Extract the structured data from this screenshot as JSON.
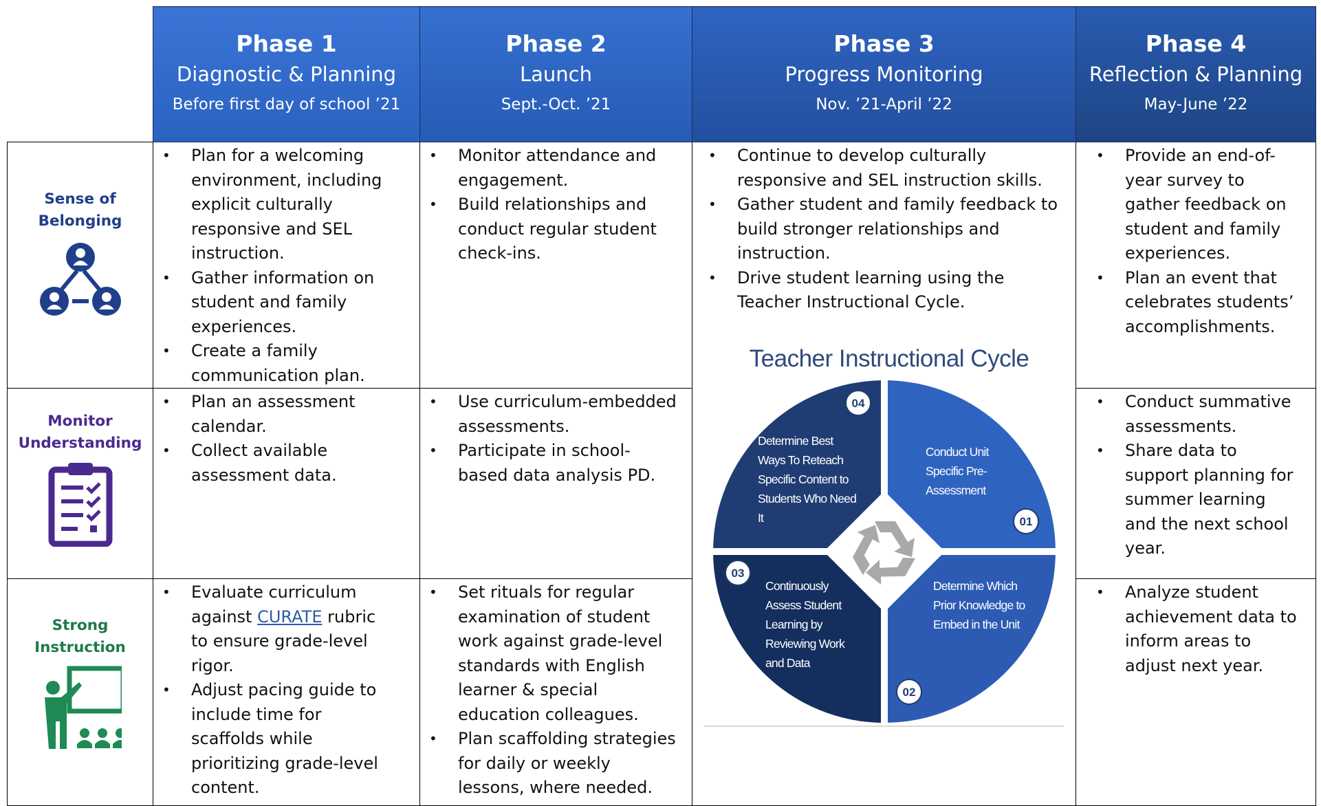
{
  "phases": [
    {
      "title": "Phase 1",
      "subtitle": "Diagnostic & Planning",
      "dates": "Before first day of school ’21"
    },
    {
      "title": "Phase 2",
      "subtitle": "Launch",
      "dates": "Sept.-Oct. ’21"
    },
    {
      "title": "Phase 3",
      "subtitle": "Progress Monitoring",
      "dates": "Nov. ’21-April ’22"
    },
    {
      "title": "Phase 4",
      "subtitle": "Reflection & Planning",
      "dates": "May-June ’22"
    }
  ],
  "rows": [
    {
      "label": "Sense of Belonging",
      "phase1": [
        "Plan for a welcoming environment, including explicit culturally responsive and SEL instruction.",
        "Gather information on student and family experiences.",
        "Create a family communication plan."
      ],
      "phase2": [
        "Monitor attendance and engagement.",
        "Build relationships and conduct regular student check-ins."
      ],
      "phase4": [
        "Provide an end-of-year survey to gather feedback on student and family experiences.",
        "Plan an event that celebrates students’ accomplishments."
      ]
    },
    {
      "label": "Monitor Understanding",
      "phase1": [
        "Plan an assessment calendar.",
        "Collect available assessment data."
      ],
      "phase2": [
        "Use curriculum-embedded assessments.",
        "Participate in school-based data analysis PD."
      ],
      "phase4": [
        "Conduct summative assessments.",
        "Share data to support planning for summer learning and the next school year."
      ]
    },
    {
      "label": "Strong Instruction",
      "phase1": [
        {
          "before": "Evaluate curriculum against",
          "link": "CURATE",
          "after": "rubric to ensure grade-level rigor."
        },
        "Adjust pacing guide to include time for scaffolds while prioritizing grade-level content."
      ],
      "phase2": [
        "Set rituals for regular examination of student work against grade-level standards with English learner & special education colleagues.",
        "Plan scaffolding strategies for daily or weekly lessons, where needed."
      ],
      "phase4": [
        "Analyze student achievement data to inform areas to adjust next year."
      ]
    }
  ],
  "phase3": {
    "bullets": [
      "Continue to develop culturally responsive and SEL instruction skills.",
      "Gather student and family feedback to build stronger relationships and instruction.",
      "Drive student learning using the Teacher Instructional Cycle."
    ],
    "cycle": {
      "title": "Teacher Instructional Cycle",
      "steps": [
        {
          "number": "01",
          "text": "Conduct Unit Specific Pre-Assessment"
        },
        {
          "number": "02",
          "text": "Determine Which Prior Knowledge to Embed in the Unit"
        },
        {
          "number": "03",
          "text": "Continuously Assess Student Learning by Reviewing Work and Data"
        },
        {
          "number": "04",
          "text": "Determine Best Ways To Reteach Specific Content to Students Who Need It"
        }
      ]
    }
  }
}
